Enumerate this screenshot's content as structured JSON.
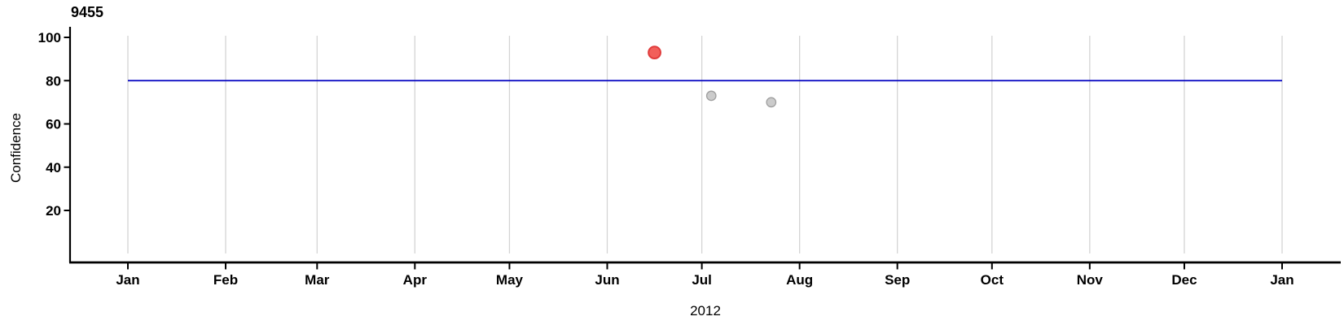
{
  "chart_data": {
    "type": "scatter",
    "title": "9455",
    "ylabel": "Confidence",
    "xlabel": "2012",
    "x_axis": {
      "unit": "months",
      "ticks": [
        {
          "label": "Jan",
          "day": 0
        },
        {
          "label": "Feb",
          "day": 31
        },
        {
          "label": "Mar",
          "day": 60
        },
        {
          "label": "Apr",
          "day": 91
        },
        {
          "label": "May",
          "day": 121
        },
        {
          "label": "Jun",
          "day": 152
        },
        {
          "label": "Jul",
          "day": 182
        },
        {
          "label": "Aug",
          "day": 213
        },
        {
          "label": "Sep",
          "day": 244
        },
        {
          "label": "Oct",
          "day": 274
        },
        {
          "label": "Nov",
          "day": 305
        },
        {
          "label": "Dec",
          "day": 335
        },
        {
          "label": "Jan",
          "day": 366
        }
      ],
      "domain_days": [
        0,
        366
      ]
    },
    "y_axis": {
      "ticks": [
        20,
        40,
        60,
        80,
        100
      ],
      "range": [
        0,
        105
      ]
    },
    "grid": "vertical month gridlines only",
    "legend": "none",
    "reference_line": {
      "y": 80
    },
    "points": [
      {
        "date": "2012-06-16",
        "day": 167,
        "confidence": 93,
        "style": "highlight"
      },
      {
        "date": "2012-07-04",
        "day": 185,
        "confidence": 73,
        "style": "normal"
      },
      {
        "date": "2012-07-23",
        "day": 204,
        "confidence": 70,
        "style": "normal"
      }
    ],
    "colors": {
      "highlight_fill": "#f25f5a",
      "highlight_stroke": "#e03c3c",
      "normal_fill": "#cbcbcb",
      "normal_stroke": "#9e9e9e",
      "grid": "#d4d4d4",
      "axis": "#000000",
      "reference": "#0000c0"
    }
  }
}
